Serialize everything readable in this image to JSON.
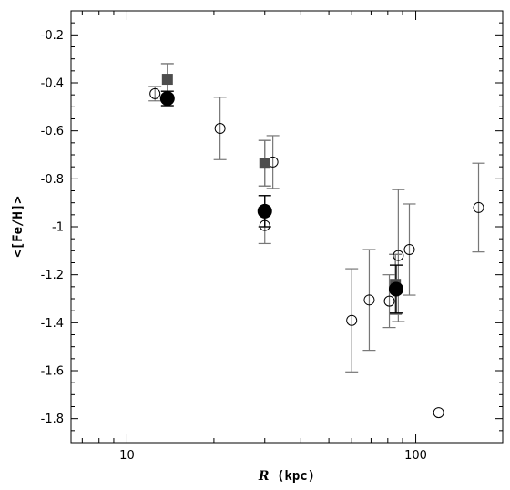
{
  "chart_data": {
    "type": "scatter",
    "xlabel_var": "R",
    "xlabel_unit": " (kpc)",
    "ylabel": "<[Fe/H]>",
    "x_scale": "log",
    "xlim": [
      6.4,
      200
    ],
    "ylim": [
      -1.9,
      -0.1
    ],
    "x_ticks": [
      10,
      100
    ],
    "x_tick_labels": [
      "10",
      "100"
    ],
    "y_ticks": [
      -0.2,
      -0.4,
      -0.6,
      -0.8,
      -1.0,
      -1.2,
      -1.4,
      -1.6,
      -1.8
    ],
    "y_tick_labels": [
      "-0.2",
      "-0.4",
      "-0.6",
      "-0.8",
      "-1",
      "-1.2",
      "-1.4",
      "-1.6",
      "-1.8"
    ],
    "grid": false,
    "colors": {
      "open": "#000000",
      "square": "#4d4d4d",
      "filled": "#000000",
      "errorbar_gray": "#777777",
      "errorbar_black": "#000000"
    },
    "series": [
      {
        "marker": "open-circle",
        "points": [
          {
            "x": 12.5,
            "y": -0.445,
            "err_low": 0.03,
            "err_high": 0.03
          },
          {
            "x": 21.0,
            "y": -0.59,
            "err_low": 0.13,
            "err_high": 0.13
          },
          {
            "x": 30.0,
            "y": -0.995,
            "err_low": 0.075,
            "err_high": 0.075
          },
          {
            "x": 32.0,
            "y": -0.73,
            "err_low": 0.11,
            "err_high": 0.11
          },
          {
            "x": 60.0,
            "y": -1.39,
            "err_low": 0.215,
            "err_high": 0.215
          },
          {
            "x": 69.0,
            "y": -1.305,
            "err_low": 0.21,
            "err_high": 0.21
          },
          {
            "x": 81.0,
            "y": -1.31,
            "err_low": 0.11,
            "err_high": 0.11
          },
          {
            "x": 87.0,
            "y": -1.12,
            "err_low": 0.275,
            "err_high": 0.275
          },
          {
            "x": 95.0,
            "y": -1.095,
            "err_low": 0.19,
            "err_high": 0.19
          },
          {
            "x": 120.0,
            "y": -1.775
          },
          {
            "x": 165.0,
            "y": -0.92,
            "err_low": 0.185,
            "err_high": 0.185
          }
        ]
      },
      {
        "marker": "filled-square",
        "points": [
          {
            "x": 13.8,
            "y": -0.385,
            "err_low": 0.065,
            "err_high": 0.065
          },
          {
            "x": 30.0,
            "y": -0.735,
            "err_low": 0.095,
            "err_high": 0.095
          },
          {
            "x": 85.0,
            "y": -1.24,
            "err_low": 0.125,
            "err_high": 0.125
          }
        ]
      },
      {
        "marker": "filled-circle",
        "points": [
          {
            "x": 13.8,
            "y": -0.465,
            "err_low": 0.03,
            "err_high": 0.03
          },
          {
            "x": 30.0,
            "y": -0.935,
            "err_low": 0.065,
            "err_high": 0.065
          },
          {
            "x": 85.5,
            "y": -1.26,
            "err_low": 0.1,
            "err_high": 0.1
          }
        ]
      }
    ]
  }
}
